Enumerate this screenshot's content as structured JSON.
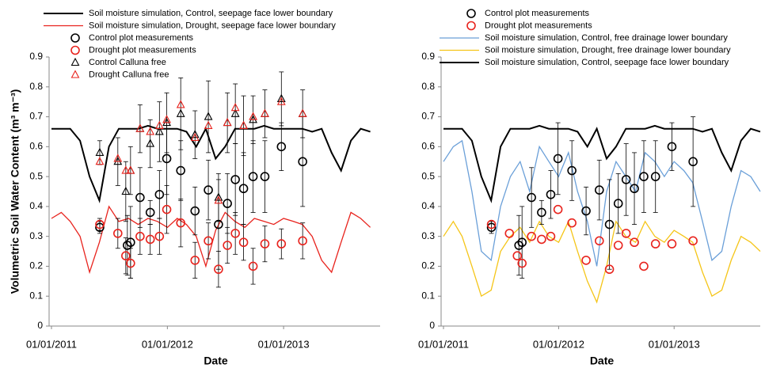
{
  "chart_data": [
    {
      "type": "line",
      "x_label": "Date",
      "y_label": "Volumetric Soil Water Content (m³ m⁻³)",
      "xlim": [
        "2011-01-01",
        "2013-11-01"
      ],
      "ylim": [
        0,
        0.9
      ],
      "yticks": [
        0,
        0.1,
        0.2,
        0.3,
        0.4,
        0.5,
        0.6,
        0.7,
        0.8,
        0.9
      ],
      "xticks": [
        {
          "value": "2011-01-01",
          "label": "01/01/2011"
        },
        {
          "value": "2012-01-01",
          "label": "01/01/2012"
        },
        {
          "value": "2013-01-01",
          "label": "01/01/2013"
        }
      ],
      "x": [
        "2011-01-01",
        "2011-02-01",
        "2011-03-01",
        "2011-04-01",
        "2011-05-01",
        "2011-06-01",
        "2011-07-01",
        "2011-08-01",
        "2011-09-01",
        "2011-10-01",
        "2011-11-01",
        "2011-12-01",
        "2012-01-01",
        "2012-02-01",
        "2012-03-01",
        "2012-04-01",
        "2012-05-01",
        "2012-06-01",
        "2012-07-01",
        "2012-08-01",
        "2012-09-01",
        "2012-10-01",
        "2012-11-01",
        "2012-12-01",
        "2013-01-01",
        "2013-02-01",
        "2013-03-01",
        "2013-04-01",
        "2013-05-01",
        "2013-06-01",
        "2013-07-01",
        "2013-08-01",
        "2013-09-01",
        "2013-10-01"
      ],
      "series": [
        {
          "name": "Soil moisture simulation, Control, seepage face lower boundary",
          "color": "#000000",
          "marker": "none",
          "values": [
            0.66,
            0.66,
            0.66,
            0.62,
            0.5,
            0.42,
            0.6,
            0.66,
            0.66,
            0.66,
            0.67,
            0.66,
            0.66,
            0.66,
            0.65,
            0.6,
            0.66,
            0.56,
            0.6,
            0.66,
            0.66,
            0.66,
            0.67,
            0.66,
            0.66,
            0.66,
            0.66,
            0.65,
            0.66,
            0.58,
            0.52,
            0.62,
            0.66,
            0.65
          ]
        },
        {
          "name": "Soil moisture simulation, Drought, seepage face lower boundary",
          "color": "#e8231d",
          "marker": "none",
          "values": [
            0.36,
            0.38,
            0.35,
            0.3,
            0.18,
            0.28,
            0.4,
            0.35,
            0.36,
            0.34,
            0.36,
            0.35,
            0.33,
            0.36,
            0.34,
            0.3,
            0.2,
            0.32,
            0.38,
            0.35,
            0.33,
            0.36,
            0.35,
            0.34,
            0.36,
            0.35,
            0.34,
            0.3,
            0.22,
            0.18,
            0.28,
            0.38,
            0.36,
            0.33
          ]
        },
        {
          "name": "Control plot measurements",
          "color": "#000000",
          "marker": "circle",
          "x": [
            "2011-06-02",
            "2011-08-28",
            "2011-09-07",
            "2011-10-07",
            "2011-11-08",
            "2011-12-07",
            "2011-12-30",
            "2012-02-12",
            "2012-03-28",
            "2012-05-09",
            "2012-06-10",
            "2012-07-08",
            "2012-08-02",
            "2012-08-28",
            "2012-09-27",
            "2012-11-03",
            "2012-12-25",
            "2013-03-02"
          ],
          "values": [
            0.33,
            0.27,
            0.28,
            0.43,
            0.38,
            0.44,
            0.56,
            0.52,
            0.385,
            0.455,
            0.34,
            0.41,
            0.49,
            0.46,
            0.5,
            0.5,
            0.6,
            0.55
          ],
          "errors": [
            0.02,
            0.1,
            0.12,
            0.1,
            0.04,
            0.08,
            0.12,
            0.1,
            0.08,
            0.1,
            0.15,
            0.1,
            0.12,
            0.12,
            0.12,
            0.12,
            0.08,
            0.15
          ]
        },
        {
          "name": "Drought plot measurements",
          "color": "#e8231d",
          "marker": "circle",
          "x": [
            "2011-06-02",
            "2011-07-29",
            "2011-08-23",
            "2011-09-07",
            "2011-10-07",
            "2011-11-08",
            "2011-12-07",
            "2011-12-30",
            "2012-02-12",
            "2012-03-28",
            "2012-05-09",
            "2012-06-10",
            "2012-07-08",
            "2012-08-02",
            "2012-08-28",
            "2012-09-27",
            "2012-11-03",
            "2012-12-25",
            "2013-03-02"
          ],
          "values": [
            0.34,
            0.31,
            0.235,
            0.21,
            0.3,
            0.29,
            0.3,
            0.39,
            0.345,
            0.22,
            0.285,
            0.19,
            0.27,
            0.31,
            0.28,
            0.2,
            0.275,
            0.275,
            0.285
          ],
          "errors": [
            0.02,
            0.05,
            0.06,
            0.05,
            0.06,
            0.05,
            0.06,
            0.08,
            0.08,
            0.06,
            0.06,
            0.06,
            0.06,
            0.07,
            0.06,
            0.06,
            0.06,
            0.05,
            0.06
          ]
        },
        {
          "name": "Control Calluna free",
          "color": "#000000",
          "marker": "triangle",
          "x": [
            "2011-06-02",
            "2011-07-29",
            "2011-08-23",
            "2011-09-07",
            "2011-10-07",
            "2011-11-08",
            "2011-12-07",
            "2011-12-30",
            "2012-02-12",
            "2012-03-28",
            "2012-05-09",
            "2012-06-10",
            "2012-07-08",
            "2012-08-02",
            "2012-08-28",
            "2012-09-27",
            "2012-11-03",
            "2012-12-25",
            "2013-03-02"
          ],
          "values": [
            0.58,
            0.55,
            0.45,
            0.52,
            0.66,
            0.61,
            0.65,
            0.68,
            0.71,
            0.64,
            0.7,
            0.43,
            0.68,
            0.71,
            0.67,
            0.69,
            0.71,
            0.76,
            0.71
          ],
          "errors": [
            0.04,
            0.08,
            0.1,
            0.08,
            0.08,
            0.08,
            0.1,
            0.1,
            0.12,
            0.08,
            0.12,
            0.08,
            0.1,
            0.1,
            0.1,
            0.08,
            0.08,
            0.09,
            0.08
          ]
        },
        {
          "name": "Drought Calluna free",
          "color": "#e8231d",
          "marker": "triangle",
          "x": [
            "2011-06-02",
            "2011-07-29",
            "2011-08-23",
            "2011-09-07",
            "2011-10-07",
            "2011-11-08",
            "2011-12-07",
            "2011-12-30",
            "2012-02-12",
            "2012-03-28",
            "2012-05-09",
            "2012-06-10",
            "2012-07-08",
            "2012-08-02",
            "2012-08-28",
            "2012-09-27",
            "2012-11-03",
            "2012-12-25",
            "2013-03-02"
          ],
          "values": [
            0.55,
            0.56,
            0.52,
            0.52,
            0.66,
            0.65,
            0.67,
            0.69,
            0.74,
            0.63,
            0.67,
            0.42,
            0.68,
            0.73,
            0.67,
            0.7,
            0.71,
            0.75,
            0.71
          ]
        }
      ]
    },
    {
      "type": "line",
      "x_label": "Date",
      "xlim": [
        "2011-01-01",
        "2013-10-01"
      ],
      "ylim": [
        0,
        0.9
      ],
      "yticks": [
        0,
        0.1,
        0.2,
        0.3,
        0.4,
        0.5,
        0.6,
        0.7,
        0.8,
        0.9
      ],
      "xticks": [
        {
          "value": "2011-01-01",
          "label": "01/01/2011"
        },
        {
          "value": "2012-01-01",
          "label": "01/01/2012"
        },
        {
          "value": "2013-01-01",
          "label": "01/01/2013"
        }
      ],
      "x": [
        "2011-01-01",
        "2011-02-01",
        "2011-03-01",
        "2011-04-01",
        "2011-05-01",
        "2011-06-01",
        "2011-07-01",
        "2011-08-01",
        "2011-09-01",
        "2011-10-01",
        "2011-11-01",
        "2011-12-01",
        "2012-01-01",
        "2012-02-01",
        "2012-03-01",
        "2012-04-01",
        "2012-05-01",
        "2012-06-01",
        "2012-07-01",
        "2012-08-01",
        "2012-09-01",
        "2012-10-01",
        "2012-11-01",
        "2012-12-01",
        "2013-01-01",
        "2013-02-01",
        "2013-03-01",
        "2013-04-01",
        "2013-05-01",
        "2013-06-01",
        "2013-07-01",
        "2013-08-01",
        "2013-09-01",
        "2013-10-01"
      ],
      "series": [
        {
          "name": "Control plot measurements",
          "color": "#000000",
          "marker": "circle",
          "x": [
            "2011-06-02",
            "2011-08-28",
            "2011-09-07",
            "2011-10-07",
            "2011-11-08",
            "2011-12-07",
            "2011-12-30",
            "2012-02-12",
            "2012-03-28",
            "2012-05-09",
            "2012-06-10",
            "2012-07-08",
            "2012-08-02",
            "2012-08-28",
            "2012-09-27",
            "2012-11-03",
            "2012-12-25",
            "2013-03-02"
          ],
          "values": [
            0.33,
            0.27,
            0.28,
            0.43,
            0.38,
            0.44,
            0.56,
            0.52,
            0.385,
            0.455,
            0.34,
            0.41,
            0.49,
            0.46,
            0.5,
            0.5,
            0.6,
            0.55
          ],
          "errors": [
            0.02,
            0.1,
            0.12,
            0.1,
            0.04,
            0.08,
            0.12,
            0.1,
            0.08,
            0.1,
            0.15,
            0.1,
            0.12,
            0.12,
            0.12,
            0.12,
            0.08,
            0.15
          ]
        },
        {
          "name": "Drought plot measurements",
          "color": "#e8231d",
          "marker": "circle",
          "x": [
            "2011-06-02",
            "2011-07-29",
            "2011-08-23",
            "2011-09-07",
            "2011-10-07",
            "2011-11-08",
            "2011-12-07",
            "2011-12-30",
            "2012-02-12",
            "2012-03-28",
            "2012-05-09",
            "2012-06-10",
            "2012-07-08",
            "2012-08-02",
            "2012-08-28",
            "2012-09-27",
            "2012-11-03",
            "2012-12-25",
            "2013-03-02"
          ],
          "values": [
            0.34,
            0.31,
            0.235,
            0.21,
            0.3,
            0.29,
            0.3,
            0.39,
            0.345,
            0.22,
            0.285,
            0.19,
            0.27,
            0.31,
            0.28,
            0.2,
            0.275,
            0.275,
            0.285
          ]
        },
        {
          "name": "Soil moisture simulation, Control, free drainage lower boundary",
          "color": "#6a9fd8",
          "marker": "none",
          "values": [
            0.55,
            0.6,
            0.62,
            0.45,
            0.25,
            0.22,
            0.4,
            0.5,
            0.55,
            0.45,
            0.6,
            0.55,
            0.5,
            0.58,
            0.45,
            0.35,
            0.2,
            0.45,
            0.55,
            0.5,
            0.45,
            0.58,
            0.55,
            0.5,
            0.55,
            0.52,
            0.48,
            0.35,
            0.22,
            0.25,
            0.4,
            0.52,
            0.5,
            0.45
          ]
        },
        {
          "name": "Soil moisture simulation, Drought, free drainage lower boundary",
          "color": "#f5c518",
          "marker": "none",
          "values": [
            0.3,
            0.35,
            0.3,
            0.2,
            0.1,
            0.12,
            0.25,
            0.3,
            0.33,
            0.28,
            0.35,
            0.3,
            0.28,
            0.35,
            0.25,
            0.15,
            0.08,
            0.2,
            0.35,
            0.3,
            0.28,
            0.35,
            0.3,
            0.28,
            0.32,
            0.3,
            0.28,
            0.18,
            0.1,
            0.12,
            0.22,
            0.3,
            0.28,
            0.25
          ]
        },
        {
          "name": "Soil moisture simulation, Control, seepage face lower boundary",
          "color": "#000000",
          "marker": "none",
          "values": [
            0.66,
            0.66,
            0.66,
            0.62,
            0.5,
            0.42,
            0.6,
            0.66,
            0.66,
            0.66,
            0.67,
            0.66,
            0.66,
            0.66,
            0.65,
            0.6,
            0.66,
            0.56,
            0.6,
            0.66,
            0.66,
            0.66,
            0.67,
            0.66,
            0.66,
            0.66,
            0.66,
            0.65,
            0.66,
            0.58,
            0.52,
            0.62,
            0.66,
            0.65
          ]
        }
      ]
    }
  ]
}
